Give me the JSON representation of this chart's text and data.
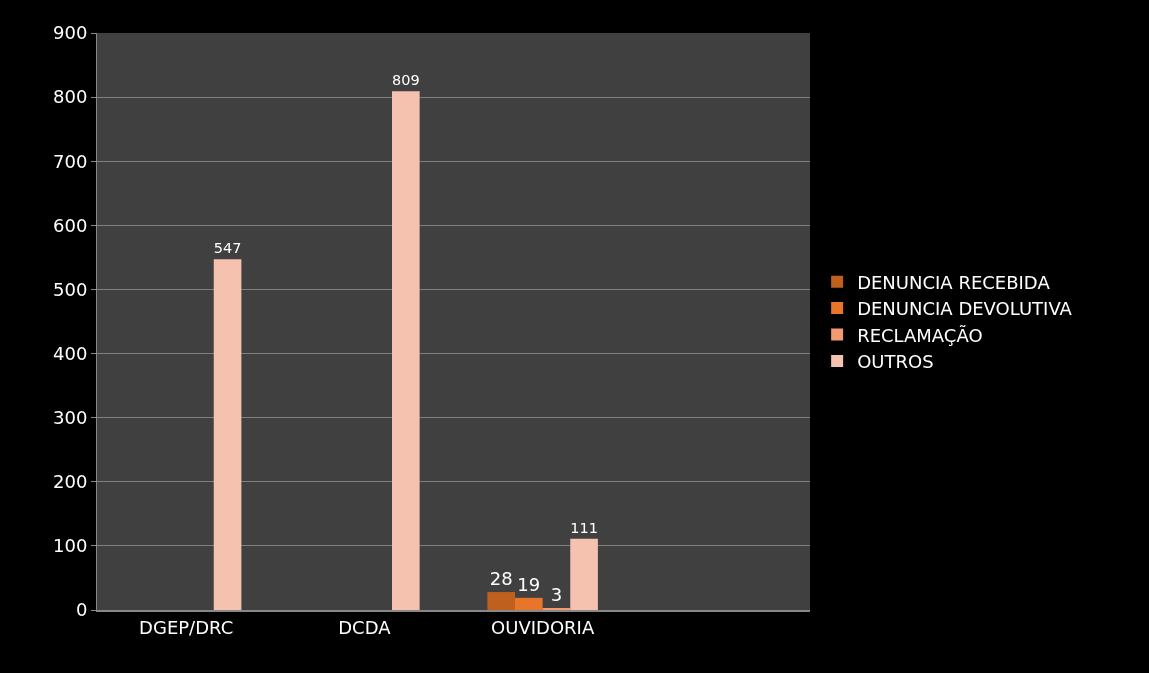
{
  "chart_data": {
    "type": "bar",
    "categories": [
      "DGEP/DRC",
      "DCDA",
      "OUVIDORIA",
      null
    ],
    "series": [
      {
        "name": "DENUNCIA RECEBIDA",
        "color": "#c0601f",
        "values": [
          null,
          null,
          28,
          null
        ]
      },
      {
        "name": "DENUNCIA DEVOLUTIVA",
        "color": "#e8752a",
        "values": [
          null,
          null,
          19,
          null
        ]
      },
      {
        "name": "RECLAMAÇÃO",
        "color": "#f29a72",
        "values": [
          null,
          null,
          3,
          null
        ]
      },
      {
        "name": "OUTROS",
        "color": "#f5c2b0",
        "values": [
          547,
          809,
          111,
          null
        ]
      }
    ],
    "ylim": [
      0,
      900
    ],
    "yticks": [
      0,
      100,
      200,
      300,
      400,
      500,
      600,
      700,
      800,
      900
    ],
    "grid": "y",
    "legend": "right",
    "data_labels": true
  }
}
